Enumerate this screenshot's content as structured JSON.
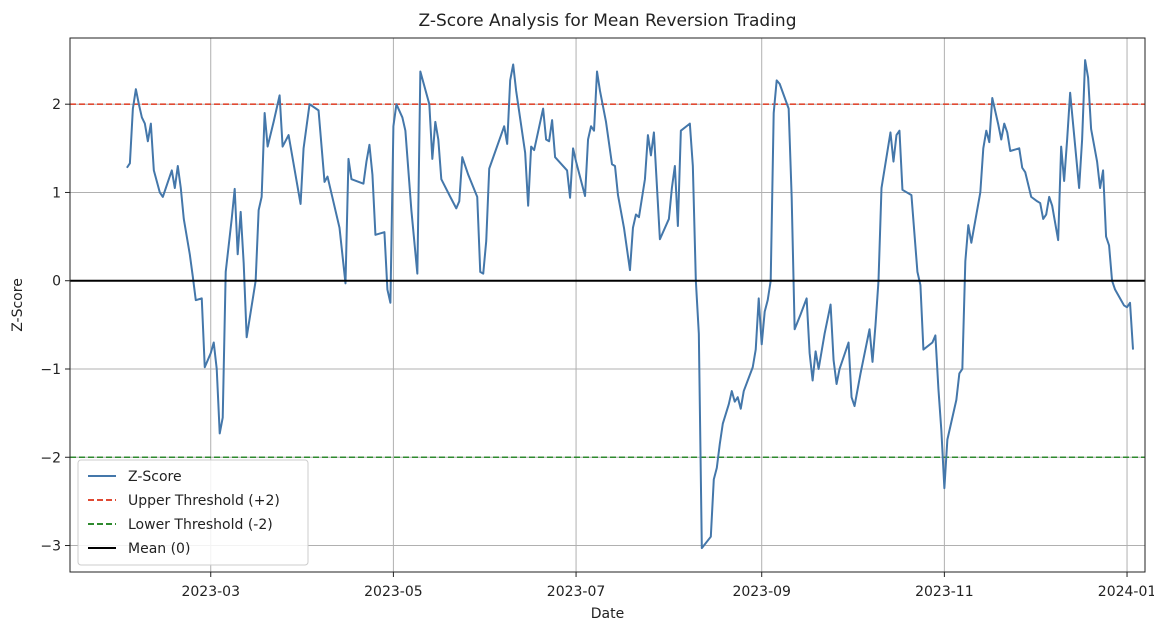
{
  "chart_data": {
    "type": "line",
    "title": "Z-Score Analysis for Mean Reversion Trading",
    "xlabel": "Date",
    "ylabel": "Z-Score",
    "xlim": [
      "2023-01-13",
      "2024-01-07"
    ],
    "ylim": [
      -3.3,
      2.75
    ],
    "grid": true,
    "legend_position": "lower-left",
    "x_ticks": [
      "2023-03-01",
      "2023-05-01",
      "2023-07-01",
      "2023-09-01",
      "2023-11-01",
      "2024-01-01"
    ],
    "x_tick_labels": [
      "2023-03",
      "2023-05",
      "2023-07",
      "2023-09",
      "2023-11",
      "2024-01"
    ],
    "y_ticks": [
      -3,
      -2,
      -1,
      0,
      1,
      2
    ],
    "y_tick_labels": [
      "−3",
      "−2",
      "−1",
      "0",
      "1",
      "2"
    ],
    "series": [
      {
        "name": "Z-Score",
        "color": "#4477aa",
        "style": "solid",
        "points": [
          [
            "2023-02-01",
            1.28
          ],
          [
            "2023-02-02",
            1.33
          ],
          [
            "2023-02-03",
            1.95
          ],
          [
            "2023-02-04",
            2.17
          ],
          [
            "2023-02-05",
            2.0
          ],
          [
            "2023-02-06",
            1.85
          ],
          [
            "2023-02-07",
            1.78
          ],
          [
            "2023-02-08",
            1.58
          ],
          [
            "2023-02-09",
            1.78
          ],
          [
            "2023-02-10",
            1.25
          ],
          [
            "2023-02-12",
            1.0
          ],
          [
            "2023-02-13",
            0.95
          ],
          [
            "2023-02-15",
            1.15
          ],
          [
            "2023-02-16",
            1.25
          ],
          [
            "2023-02-17",
            1.05
          ],
          [
            "2023-02-18",
            1.3
          ],
          [
            "2023-02-19",
            1.05
          ],
          [
            "2023-02-20",
            0.7
          ],
          [
            "2023-02-22",
            0.3
          ],
          [
            "2023-02-23",
            0.05
          ],
          [
            "2023-02-24",
            -0.22
          ],
          [
            "2023-02-26",
            -0.2
          ],
          [
            "2023-02-27",
            -0.98
          ],
          [
            "2023-03-01",
            -0.82
          ],
          [
            "2023-03-02",
            -0.7
          ],
          [
            "2023-03-03",
            -1.0
          ],
          [
            "2023-03-04",
            -1.73
          ],
          [
            "2023-03-05",
            -1.55
          ],
          [
            "2023-03-06",
            0.1
          ],
          [
            "2023-03-08",
            0.7
          ],
          [
            "2023-03-09",
            1.04
          ],
          [
            "2023-03-10",
            0.3
          ],
          [
            "2023-03-11",
            0.78
          ],
          [
            "2023-03-12",
            0.2
          ],
          [
            "2023-03-13",
            -0.64
          ],
          [
            "2023-03-16",
            0.0
          ],
          [
            "2023-03-17",
            0.8
          ],
          [
            "2023-03-18",
            0.95
          ],
          [
            "2023-03-19",
            1.9
          ],
          [
            "2023-03-20",
            1.52
          ],
          [
            "2023-03-22",
            1.8
          ],
          [
            "2023-03-24",
            2.1
          ],
          [
            "2023-03-25",
            1.52
          ],
          [
            "2023-03-27",
            1.65
          ],
          [
            "2023-03-31",
            0.87
          ],
          [
            "2023-04-01",
            1.5
          ],
          [
            "2023-04-03",
            2.0
          ],
          [
            "2023-04-06",
            1.93
          ],
          [
            "2023-04-08",
            1.12
          ],
          [
            "2023-04-09",
            1.18
          ],
          [
            "2023-04-13",
            0.6
          ],
          [
            "2023-04-15",
            -0.03
          ],
          [
            "2023-04-16",
            1.38
          ],
          [
            "2023-04-17",
            1.15
          ],
          [
            "2023-04-21",
            1.1
          ],
          [
            "2023-04-22",
            1.35
          ],
          [
            "2023-04-23",
            1.54
          ],
          [
            "2023-04-24",
            1.2
          ],
          [
            "2023-04-25",
            0.52
          ],
          [
            "2023-04-28",
            0.55
          ],
          [
            "2023-04-29",
            -0.1
          ],
          [
            "2023-04-30",
            -0.25
          ],
          [
            "2023-05-01",
            1.75
          ],
          [
            "2023-05-02",
            2.0
          ],
          [
            "2023-05-04",
            1.85
          ],
          [
            "2023-05-05",
            1.7
          ],
          [
            "2023-05-07",
            0.8
          ],
          [
            "2023-05-09",
            0.08
          ],
          [
            "2023-05-10",
            2.37
          ],
          [
            "2023-05-13",
            2.0
          ],
          [
            "2023-05-14",
            1.38
          ],
          [
            "2023-05-15",
            1.8
          ],
          [
            "2023-05-16",
            1.6
          ],
          [
            "2023-05-17",
            1.15
          ],
          [
            "2023-05-20",
            0.95
          ],
          [
            "2023-05-22",
            0.82
          ],
          [
            "2023-05-23",
            0.9
          ],
          [
            "2023-05-24",
            1.4
          ],
          [
            "2023-05-26",
            1.2
          ],
          [
            "2023-05-29",
            0.95
          ],
          [
            "2023-05-30",
            0.1
          ],
          [
            "2023-05-31",
            0.08
          ],
          [
            "2023-06-01",
            0.45
          ],
          [
            "2023-06-02",
            1.27
          ],
          [
            "2023-06-07",
            1.75
          ],
          [
            "2023-06-08",
            1.55
          ],
          [
            "2023-06-09",
            2.27
          ],
          [
            "2023-06-10",
            2.45
          ],
          [
            "2023-06-11",
            2.15
          ],
          [
            "2023-06-14",
            1.45
          ],
          [
            "2023-06-15",
            0.85
          ],
          [
            "2023-06-16",
            1.52
          ],
          [
            "2023-06-17",
            1.48
          ],
          [
            "2023-06-20",
            1.95
          ],
          [
            "2023-06-21",
            1.6
          ],
          [
            "2023-06-22",
            1.58
          ],
          [
            "2023-06-23",
            1.82
          ],
          [
            "2023-06-24",
            1.4
          ],
          [
            "2023-06-28",
            1.25
          ],
          [
            "2023-06-29",
            0.94
          ],
          [
            "2023-06-30",
            1.5
          ],
          [
            "2023-07-01",
            1.35
          ],
          [
            "2023-07-04",
            0.96
          ],
          [
            "2023-07-05",
            1.6
          ],
          [
            "2023-07-06",
            1.75
          ],
          [
            "2023-07-07",
            1.7
          ],
          [
            "2023-07-08",
            2.37
          ],
          [
            "2023-07-09",
            2.15
          ],
          [
            "2023-07-11",
            1.8
          ],
          [
            "2023-07-13",
            1.32
          ],
          [
            "2023-07-14",
            1.3
          ],
          [
            "2023-07-15",
            0.97
          ],
          [
            "2023-07-17",
            0.6
          ],
          [
            "2023-07-19",
            0.12
          ],
          [
            "2023-07-20",
            0.6
          ],
          [
            "2023-07-21",
            0.75
          ],
          [
            "2023-07-22",
            0.72
          ],
          [
            "2023-07-24",
            1.15
          ],
          [
            "2023-07-25",
            1.65
          ],
          [
            "2023-07-26",
            1.42
          ],
          [
            "2023-07-27",
            1.68
          ],
          [
            "2023-07-29",
            0.47
          ],
          [
            "2023-08-01",
            0.7
          ],
          [
            "2023-08-02",
            1.05
          ],
          [
            "2023-08-03",
            1.3
          ],
          [
            "2023-08-04",
            0.62
          ],
          [
            "2023-08-05",
            1.7
          ],
          [
            "2023-08-08",
            1.78
          ],
          [
            "2023-08-09",
            1.3
          ],
          [
            "2023-08-10",
            0.0
          ],
          [
            "2023-08-11",
            -0.6
          ],
          [
            "2023-08-12",
            -3.03
          ],
          [
            "2023-08-15",
            -2.9
          ],
          [
            "2023-08-16",
            -2.25
          ],
          [
            "2023-08-17",
            -2.12
          ],
          [
            "2023-08-18",
            -1.85
          ],
          [
            "2023-08-19",
            -1.62
          ],
          [
            "2023-08-21",
            -1.4
          ],
          [
            "2023-08-22",
            -1.25
          ],
          [
            "2023-08-23",
            -1.37
          ],
          [
            "2023-08-24",
            -1.32
          ],
          [
            "2023-08-25",
            -1.45
          ],
          [
            "2023-08-26",
            -1.25
          ],
          [
            "2023-08-29",
            -0.98
          ],
          [
            "2023-08-30",
            -0.78
          ],
          [
            "2023-08-31",
            -0.2
          ],
          [
            "2023-09-01",
            -0.72
          ],
          [
            "2023-09-02",
            -0.35
          ],
          [
            "2023-09-03",
            -0.22
          ],
          [
            "2023-09-04",
            0.0
          ],
          [
            "2023-09-05",
            1.9
          ],
          [
            "2023-09-06",
            2.27
          ],
          [
            "2023-09-07",
            2.23
          ],
          [
            "2023-09-10",
            1.95
          ],
          [
            "2023-09-11",
            0.95
          ],
          [
            "2023-09-12",
            -0.55
          ],
          [
            "2023-09-14",
            -0.38
          ],
          [
            "2023-09-16",
            -0.2
          ],
          [
            "2023-09-17",
            -0.82
          ],
          [
            "2023-09-18",
            -1.13
          ],
          [
            "2023-09-19",
            -0.8
          ],
          [
            "2023-09-20",
            -1.0
          ],
          [
            "2023-09-22",
            -0.6
          ],
          [
            "2023-09-24",
            -0.27
          ],
          [
            "2023-09-25",
            -0.9
          ],
          [
            "2023-09-26",
            -1.17
          ],
          [
            "2023-09-27",
            -1.0
          ],
          [
            "2023-09-30",
            -0.7
          ],
          [
            "2023-10-01",
            -1.32
          ],
          [
            "2023-10-02",
            -1.42
          ],
          [
            "2023-10-04",
            -1.05
          ],
          [
            "2023-10-07",
            -0.55
          ],
          [
            "2023-10-08",
            -0.92
          ],
          [
            "2023-10-09",
            -0.5
          ],
          [
            "2023-10-10",
            0.0
          ],
          [
            "2023-10-11",
            1.05
          ],
          [
            "2023-10-14",
            1.68
          ],
          [
            "2023-10-15",
            1.35
          ],
          [
            "2023-10-16",
            1.65
          ],
          [
            "2023-10-17",
            1.7
          ],
          [
            "2023-10-18",
            1.03
          ],
          [
            "2023-10-21",
            0.97
          ],
          [
            "2023-10-23",
            0.1
          ],
          [
            "2023-10-24",
            -0.05
          ],
          [
            "2023-10-25",
            -0.78
          ],
          [
            "2023-10-28",
            -0.7
          ],
          [
            "2023-10-29",
            -0.62
          ],
          [
            "2023-10-30",
            -1.22
          ],
          [
            "2023-10-31",
            -1.7
          ],
          [
            "2023-11-01",
            -2.35
          ],
          [
            "2023-11-02",
            -1.8
          ],
          [
            "2023-11-05",
            -1.35
          ],
          [
            "2023-11-06",
            -1.05
          ],
          [
            "2023-11-07",
            -1.0
          ],
          [
            "2023-11-08",
            0.22
          ],
          [
            "2023-11-09",
            0.63
          ],
          [
            "2023-11-10",
            0.43
          ],
          [
            "2023-11-13",
            1.0
          ],
          [
            "2023-11-14",
            1.5
          ],
          [
            "2023-11-15",
            1.7
          ],
          [
            "2023-11-16",
            1.57
          ],
          [
            "2023-11-17",
            2.07
          ],
          [
            "2023-11-19",
            1.77
          ],
          [
            "2023-11-20",
            1.6
          ],
          [
            "2023-11-21",
            1.78
          ],
          [
            "2023-11-22",
            1.68
          ],
          [
            "2023-11-23",
            1.47
          ],
          [
            "2023-11-26",
            1.5
          ],
          [
            "2023-11-27",
            1.28
          ],
          [
            "2023-11-28",
            1.23
          ],
          [
            "2023-11-30",
            0.95
          ],
          [
            "2023-12-02",
            0.9
          ],
          [
            "2023-12-03",
            0.88
          ],
          [
            "2023-12-04",
            0.7
          ],
          [
            "2023-12-05",
            0.75
          ],
          [
            "2023-12-06",
            0.95
          ],
          [
            "2023-12-07",
            0.85
          ],
          [
            "2023-12-09",
            0.46
          ],
          [
            "2023-12-10",
            1.52
          ],
          [
            "2023-12-11",
            1.13
          ],
          [
            "2023-12-12",
            1.6
          ],
          [
            "2023-12-13",
            2.13
          ],
          [
            "2023-12-16",
            1.05
          ],
          [
            "2023-12-17",
            1.6
          ],
          [
            "2023-12-18",
            2.5
          ],
          [
            "2023-12-19",
            2.3
          ],
          [
            "2023-12-20",
            1.72
          ],
          [
            "2023-12-22",
            1.35
          ],
          [
            "2023-12-23",
            1.05
          ],
          [
            "2023-12-24",
            1.25
          ],
          [
            "2023-12-25",
            0.5
          ],
          [
            "2023-12-26",
            0.4
          ],
          [
            "2023-12-27",
            0.0
          ],
          [
            "2023-12-28",
            -0.1
          ],
          [
            "2023-12-30",
            -0.22
          ],
          [
            "2023-12-31",
            -0.28
          ],
          [
            "2024-01-01",
            -0.3
          ],
          [
            "2024-01-02",
            -0.25
          ],
          [
            "2024-01-03",
            -0.78
          ]
        ]
      },
      {
        "name": "Upper Threshold (+2)",
        "color": "#e04a33",
        "style": "dashed",
        "value": 2
      },
      {
        "name": "Lower Threshold (-2)",
        "color": "#2e8a2e",
        "style": "dashed",
        "value": -2
      },
      {
        "name": "Mean (0)",
        "color": "#000000",
        "style": "solid",
        "value": 0
      }
    ]
  }
}
